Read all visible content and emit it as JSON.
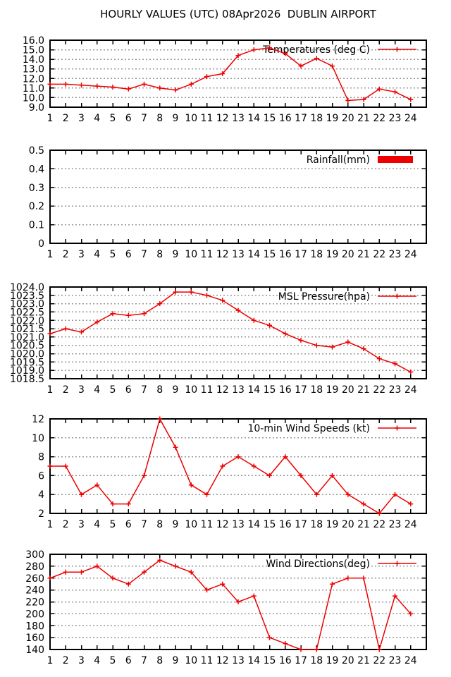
{
  "title": "HOURLY VALUES (UTC) 08Apr2026  DUBLIN AIRPORT",
  "colors": {
    "series": "#ee0000",
    "grid": "#999999",
    "axis": "#000000",
    "background": "#ffffff"
  },
  "chart_data": {
    "hours": [
      1,
      2,
      3,
      4,
      5,
      6,
      7,
      8,
      9,
      10,
      11,
      12,
      13,
      14,
      15,
      16,
      17,
      18,
      19,
      20,
      21,
      22,
      23,
      24
    ],
    "grid": "horizontal-dotted",
    "legend_position": "top-right-inside",
    "charts": [
      {
        "name": "temperatures",
        "type": "line",
        "legend": "Temperatures (deg C)",
        "ylim": [
          9.0,
          16.0
        ],
        "ytick_step": 1.0,
        "ytick_decimals": 1,
        "values": [
          11.4,
          11.4,
          11.3,
          11.2,
          11.1,
          10.9,
          11.4,
          11.0,
          10.8,
          11.4,
          12.2,
          12.5,
          14.4,
          15.0,
          15.2,
          14.6,
          13.3,
          14.1,
          13.3,
          9.7,
          9.8,
          10.9,
          10.6,
          9.8
        ]
      },
      {
        "name": "rainfall",
        "type": "bar",
        "legend": "Rainfall(mm)",
        "ylim": [
          0,
          0.5
        ],
        "ytick_step": 0.1,
        "ytick_decimals": 1,
        "values": [
          0,
          0,
          0,
          0,
          0,
          0,
          0,
          0,
          0,
          0,
          0,
          0,
          0,
          0,
          0,
          0,
          0,
          0,
          0,
          0,
          0,
          0,
          0,
          0
        ]
      },
      {
        "name": "msl-pressure",
        "type": "line",
        "legend": "MSL Pressure(hpa)",
        "ylim": [
          1018.5,
          1024.0
        ],
        "ytick_step": 0.5,
        "ytick_decimals": 1,
        "values": [
          1021.2,
          1021.5,
          1021.3,
          1021.9,
          1022.4,
          1022.3,
          1022.4,
          1023.0,
          1023.7,
          1023.7,
          1023.5,
          1023.2,
          1022.6,
          1022.0,
          1021.7,
          1021.2,
          1020.8,
          1020.5,
          1020.4,
          1020.7,
          1020.3,
          1019.7,
          1019.4,
          1018.9
        ]
      },
      {
        "name": "wind-speeds",
        "type": "line",
        "legend": "10-min Wind Speeds (kt)",
        "ylim": [
          2,
          12
        ],
        "ytick_step": 2,
        "ytick_decimals": 0,
        "values": [
          7,
          7,
          4,
          5,
          3,
          3,
          6,
          12,
          9,
          5,
          4,
          7,
          8,
          7,
          6,
          8,
          6,
          4,
          6,
          4,
          3,
          2,
          4,
          3
        ]
      },
      {
        "name": "wind-directions",
        "type": "line",
        "legend": "Wind Directions(deg)",
        "ylim": [
          140,
          300
        ],
        "ytick_step": 20,
        "ytick_decimals": 0,
        "values": [
          260,
          270,
          270,
          280,
          260,
          250,
          270,
          290,
          280,
          270,
          240,
          250,
          220,
          230,
          160,
          150,
          140,
          140,
          250,
          260,
          260,
          140,
          230,
          200
        ]
      }
    ]
  }
}
